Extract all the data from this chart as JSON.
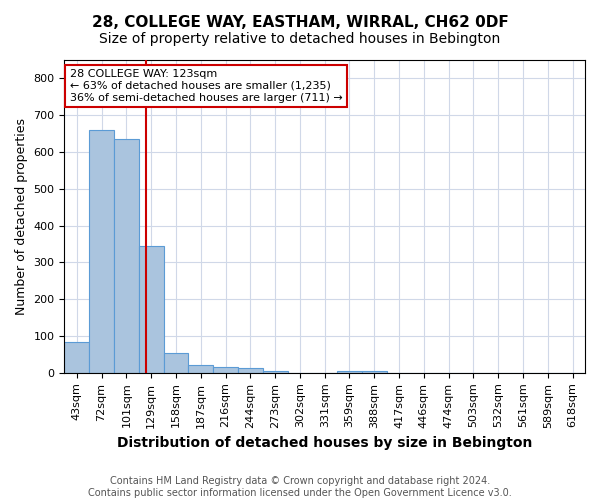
{
  "title": "28, COLLEGE WAY, EASTHAM, WIRRAL, CH62 0DF",
  "subtitle": "Size of property relative to detached houses in Bebington",
  "xlabel": "Distribution of detached houses by size in Bebington",
  "ylabel": "Number of detached properties",
  "footnote1": "Contains HM Land Registry data © Crown copyright and database right 2024.",
  "footnote2": "Contains public sector information licensed under the Open Government Licence v3.0.",
  "annotation_line1": "28 COLLEGE WAY: 123sqm",
  "annotation_line2": "← 63% of detached houses are smaller (1,235)",
  "annotation_line3": "36% of semi-detached houses are larger (711) →",
  "bin_labels": [
    "43sqm",
    "72sqm",
    "101sqm",
    "129sqm",
    "158sqm",
    "187sqm",
    "216sqm",
    "244sqm",
    "273sqm",
    "302sqm",
    "331sqm",
    "359sqm",
    "388sqm",
    "417sqm",
    "446sqm",
    "474sqm",
    "503sqm",
    "532sqm",
    "561sqm",
    "589sqm",
    "618sqm"
  ],
  "bar_heights": [
    85,
    660,
    635,
    345,
    55,
    20,
    15,
    12,
    5,
    0,
    0,
    5,
    5,
    0,
    0,
    0,
    0,
    0,
    0,
    0,
    0
  ],
  "bar_color": "#aac4de",
  "bar_edge_color": "#5b9bd5",
  "red_line_color": "#cc0000",
  "annotation_box_color": "#cc0000",
  "ylim": [
    0,
    850
  ],
  "yticks": [
    0,
    100,
    200,
    300,
    400,
    500,
    600,
    700,
    800
  ],
  "background_color": "#ffffff",
  "grid_color": "#d0d8e8",
  "title_fontsize": 11,
  "subtitle_fontsize": 10,
  "xlabel_fontsize": 10,
  "ylabel_fontsize": 9,
  "tick_fontsize": 8,
  "annotation_fontsize": 8,
  "footnote_fontsize": 7
}
